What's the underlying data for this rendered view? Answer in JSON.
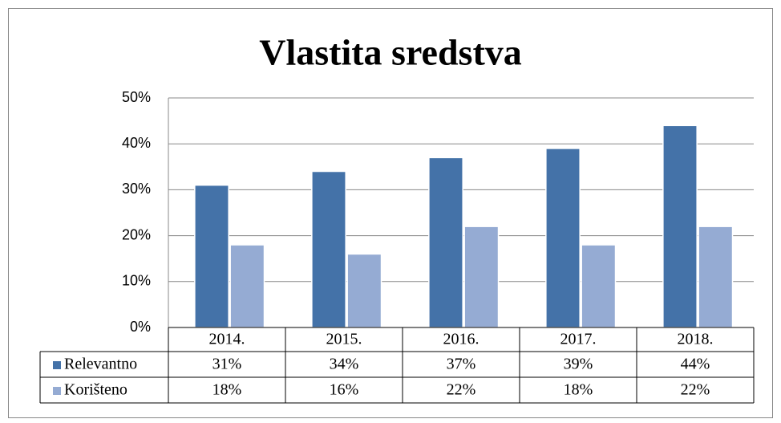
{
  "chart_data": {
    "type": "bar",
    "title": "Vlastita sredstva",
    "categories": [
      "2014.",
      "2015.",
      "2016.",
      "2017.",
      "2018."
    ],
    "series": [
      {
        "name": "Relevantno",
        "color": "#4472a8",
        "values": [
          31,
          34,
          37,
          39,
          44
        ],
        "value_labels": [
          "31%",
          "34%",
          "37%",
          "39%",
          "44%"
        ]
      },
      {
        "name": "Korišteno",
        "color": "#95abd3",
        "values": [
          18,
          16,
          22,
          18,
          22
        ],
        "value_labels": [
          "18%",
          "16%",
          "22%",
          "18%",
          "22%"
        ]
      }
    ],
    "ylim": [
      0,
      50
    ],
    "yticks": [
      {
        "value": 0,
        "label": "0%"
      },
      {
        "value": 10,
        "label": "10%"
      },
      {
        "value": 20,
        "label": "20%"
      },
      {
        "value": 30,
        "label": "30%"
      },
      {
        "value": 40,
        "label": "40%"
      },
      {
        "value": 50,
        "label": "50%"
      }
    ],
    "grid": true
  }
}
